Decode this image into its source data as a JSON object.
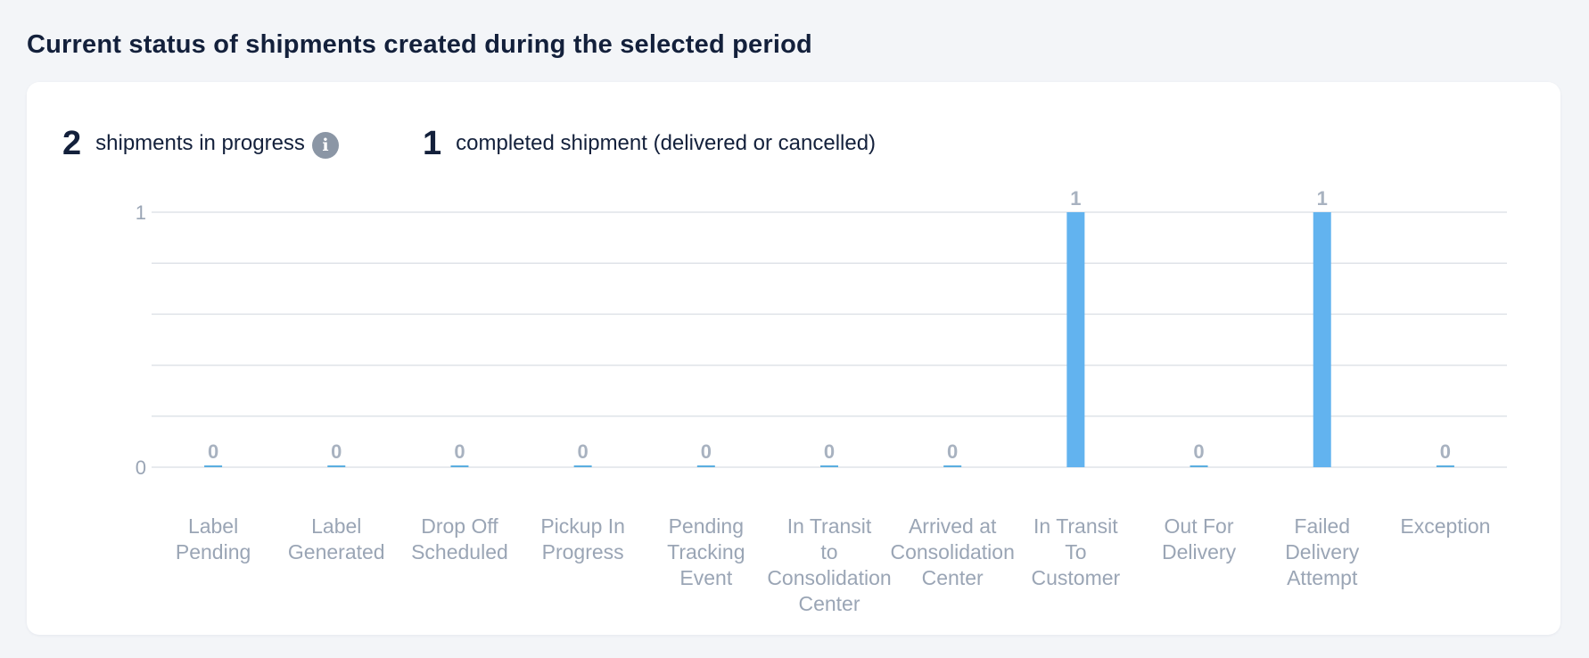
{
  "page": {
    "title": "Current status of shipments created during the selected period"
  },
  "summary": {
    "in_progress_count": "2",
    "in_progress_label": "shipments in progress",
    "info_icon": "info-icon",
    "completed_count": "1",
    "completed_label": "completed  shipment (delivered or cancelled)"
  },
  "colors": {
    "bar": "#62b3ef",
    "zero_bar": "#5aaee0",
    "title": "#13203b",
    "axis_text": "#9aa5b5"
  },
  "chart_data": {
    "type": "bar",
    "title": "",
    "xlabel": "",
    "ylabel": "",
    "ylim": [
      0,
      1
    ],
    "yticks": [
      "0",
      "1"
    ],
    "grid": true,
    "categories": [
      [
        "Label",
        "Pending"
      ],
      [
        "Label",
        "Generated"
      ],
      [
        "Drop Off",
        "Scheduled"
      ],
      [
        "Pickup In",
        "Progress"
      ],
      [
        "Pending",
        "Tracking",
        "Event"
      ],
      [
        "In Transit",
        "to",
        "Consolidation",
        "Center"
      ],
      [
        "Arrived at",
        "Consolidation",
        "Center"
      ],
      [
        "In Transit",
        "To",
        "Customer"
      ],
      [
        "Out For",
        "Delivery"
      ],
      [
        "Failed",
        "Delivery",
        "Attempt"
      ],
      [
        "Exception"
      ]
    ],
    "values": [
      0,
      0,
      0,
      0,
      0,
      0,
      0,
      1,
      0,
      1,
      0
    ],
    "data_labels": [
      "0",
      "0",
      "0",
      "0",
      "0",
      "0",
      "0",
      "1",
      "0",
      "1",
      "0"
    ]
  }
}
